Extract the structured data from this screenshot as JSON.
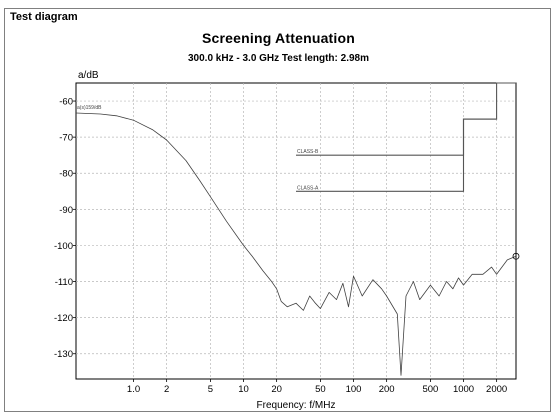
{
  "panel": {
    "title": "Test diagram"
  },
  "chart_data": {
    "type": "line",
    "title": "Screening Attenuation",
    "subtitle": "300.0 kHz - 3.0 GHz   Test length: 2.98m",
    "xlabel": "Frequency: f/MHz",
    "ylabel": "a/dB",
    "xscale": "log",
    "xlim": [
      0.3,
      3000
    ],
    "ylim": [
      -137,
      -55
    ],
    "xticks": [
      1,
      2,
      5,
      10,
      20,
      50,
      100,
      200,
      500,
      1000,
      2000
    ],
    "xtick_labels": [
      "1.0",
      "2",
      "5",
      "10",
      "20",
      "50",
      "100",
      "200",
      "500",
      "1000",
      "2000"
    ],
    "yticks": [
      -60,
      -70,
      -80,
      -90,
      -100,
      -110,
      -120,
      -130
    ],
    "grid": true,
    "series": [
      {
        "name": "a(s)159/dB",
        "color": "#404040",
        "x": [
          0.3,
          0.5,
          0.7,
          1.0,
          1.5,
          2.0,
          3.0,
          4.0,
          5.0,
          7.0,
          10,
          12,
          15,
          18,
          20,
          22,
          25,
          30,
          35,
          40,
          45,
          50,
          60,
          70,
          80,
          90,
          100,
          120,
          150,
          180,
          200,
          250,
          270,
          300,
          350,
          400,
          500,
          600,
          700,
          800,
          900,
          1000,
          1200,
          1500,
          1800,
          2000,
          2500,
          3000
        ],
        "y": [
          -63.3,
          -63.6,
          -64.1,
          -65.3,
          -68.0,
          -70.8,
          -76.5,
          -82.0,
          -86.5,
          -93.3,
          -100.0,
          -103.0,
          -107.0,
          -110.0,
          -112.0,
          -115.5,
          -117.0,
          -116.0,
          -118.0,
          -114.0,
          -116.0,
          -117.5,
          -113.0,
          -115.0,
          -110.5,
          -117.0,
          -108.5,
          -114.0,
          -109.5,
          -112.0,
          -114.0,
          -119.0,
          -136.0,
          -114.0,
          -110.0,
          -115.0,
          -111.0,
          -114.0,
          -110.0,
          -112.0,
          -109.0,
          -111.0,
          -108.0,
          -108.0,
          -106.0,
          -108.0,
          -104.0,
          -103.0
        ]
      }
    ],
    "limits": [
      {
        "name": "CLASS-B",
        "color": "#555555",
        "x": [
          30,
          1000,
          1000,
          2000,
          2000
        ],
        "y": [
          -75,
          -75,
          -65,
          -65,
          -65
        ],
        "style": "solid"
      },
      {
        "name": "CLASS-A",
        "color": "#555555",
        "x": [
          30,
          1000,
          1000,
          2000,
          2000,
          3000
        ],
        "y": [
          -85,
          -85,
          -65,
          -65,
          -55,
          -55
        ],
        "style": "solid"
      }
    ]
  }
}
